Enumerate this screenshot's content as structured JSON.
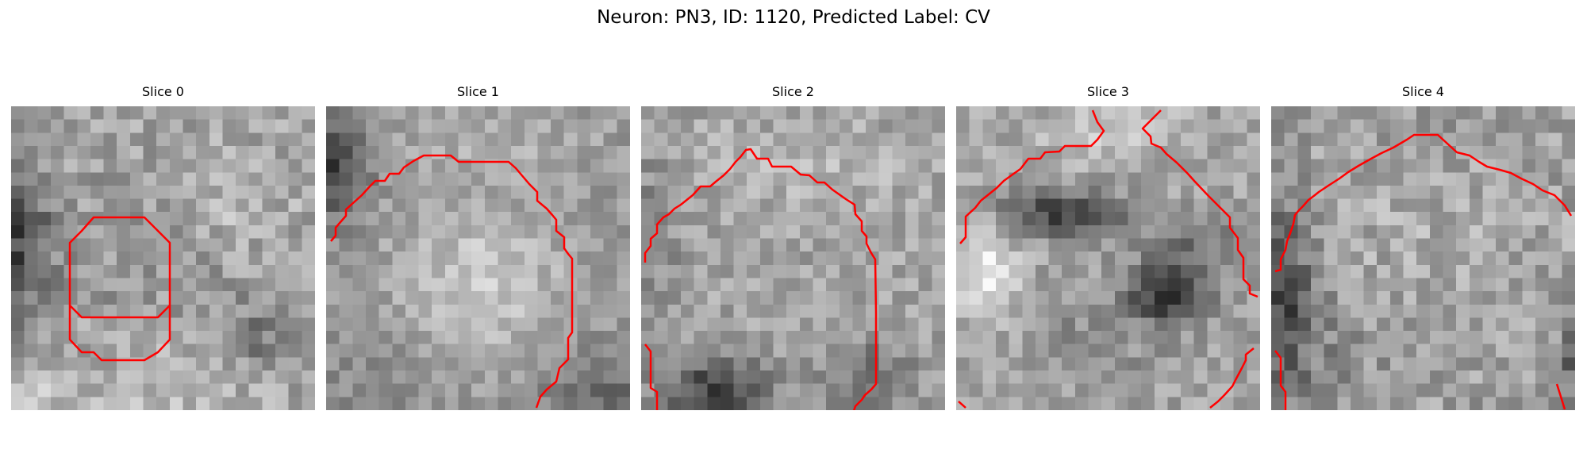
{
  "figure": {
    "title": "Neuron: PN3, ID: 1120, Predicted Label: CV"
  },
  "slices": [
    {
      "title": "Slice 0"
    },
    {
      "title": "Slice 1"
    },
    {
      "title": "Slice 2"
    },
    {
      "title": "Slice 3"
    },
    {
      "title": "Slice 4"
    }
  ],
  "colors": {
    "contour": "#ff0000",
    "colormap": "grayscale"
  }
}
